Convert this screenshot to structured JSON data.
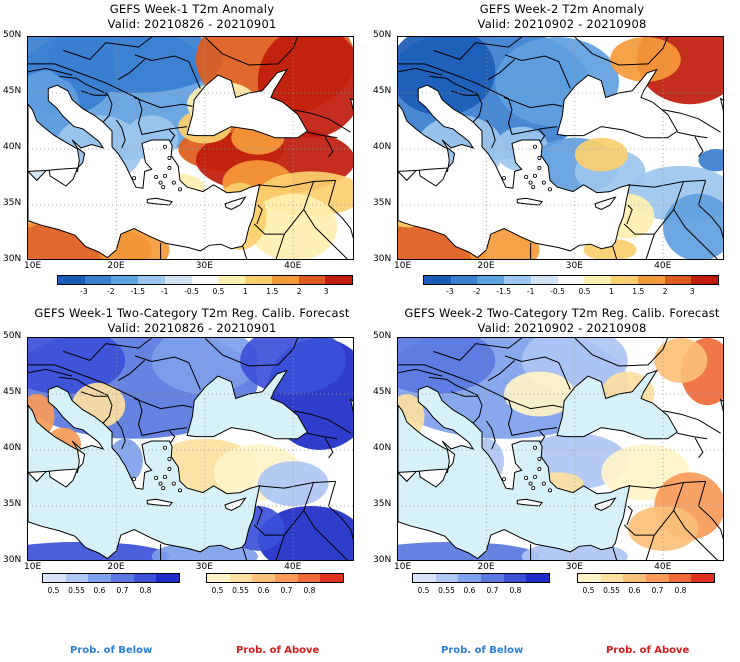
{
  "panels": [
    {
      "title": "GEFS Week-1 T2m Anomaly",
      "valid": "Valid: 20210826 - 20210901"
    },
    {
      "title": "GEFS Week-2 T2m Anomaly",
      "valid": "Valid: 20210902 - 20210908"
    },
    {
      "title": "GEFS Week-1 Two-Category T2m Reg. Calib. Forecast",
      "valid": "Valid: 20210826 - 20210901"
    },
    {
      "title": "GEFS Week-2 Two-Category T2m Reg. Calib. Forecast",
      "valid": "Valid: 20210902 - 20210908"
    }
  ],
  "axes": {
    "lat": [
      "50N",
      "45N",
      "40N",
      "35N",
      "30N"
    ],
    "lon": [
      "10E",
      "20E",
      "30E",
      "40E"
    ]
  },
  "anomaly_colorbar": {
    "labels": [
      "-3",
      "-2",
      "-1.5",
      "-1",
      "-0.5",
      "0.5",
      "1",
      "1.5",
      "2",
      "3"
    ],
    "colors": [
      "#1c5cb8",
      "#3a7fd0",
      "#5fa0e0",
      "#9cc6ee",
      "#cfe3f6",
      "#ffffff",
      "#fff0b0",
      "#fccf6e",
      "#f59a3a",
      "#e05c1c",
      "#c01c0c"
    ]
  },
  "prob_colorbar": {
    "below_labels": [
      "0.5",
      "0.55",
      "0.6",
      "0.7",
      "0.8"
    ],
    "above_labels": [
      "0.5",
      "0.55",
      "0.6",
      "0.7",
      "0.8"
    ],
    "below_colors": [
      "#d8e4fa",
      "#aec6f4",
      "#7fa0ec",
      "#5a78e0",
      "#3c50d8",
      "#1e2cc8"
    ],
    "above_colors": [
      "#fff4c8",
      "#fde0a0",
      "#fbc07a",
      "#f89a58",
      "#f06a3a",
      "#e03020"
    ]
  },
  "prob_labels": {
    "below": "Prob. of Below",
    "above": "Prob. of Above"
  },
  "colors": {
    "sea": "#d6f1f7",
    "land": "#ffffff",
    "border": "#000000"
  },
  "chart_data": [
    {
      "type": "heatmap",
      "title": "GEFS Week-1 T2m Anomaly",
      "subtitle": "Valid: 20210826 - 20210901",
      "xlim": [
        10,
        47
      ],
      "ylim": [
        30,
        50
      ]
    },
    {
      "type": "heatmap",
      "title": "GEFS Week-2 T2m Anomaly",
      "subtitle": "Valid: 20210902 - 20210908",
      "xlim": [
        10,
        47
      ],
      "ylim": [
        30,
        50
      ]
    },
    {
      "type": "heatmap",
      "title": "GEFS Week-1 Two-Category T2m Reg. Calib. Forecast",
      "subtitle": "Valid: 20210826 - 20210901",
      "xlim": [
        10,
        47
      ],
      "ylim": [
        30,
        50
      ]
    },
    {
      "type": "heatmap",
      "title": "GEFS Week-2 Two-Category T2m Reg. Calib. Forecast",
      "subtitle": "Valid: 20210902 - 20210908",
      "xlim": [
        10,
        47
      ],
      "ylim": [
        30,
        50
      ]
    }
  ]
}
